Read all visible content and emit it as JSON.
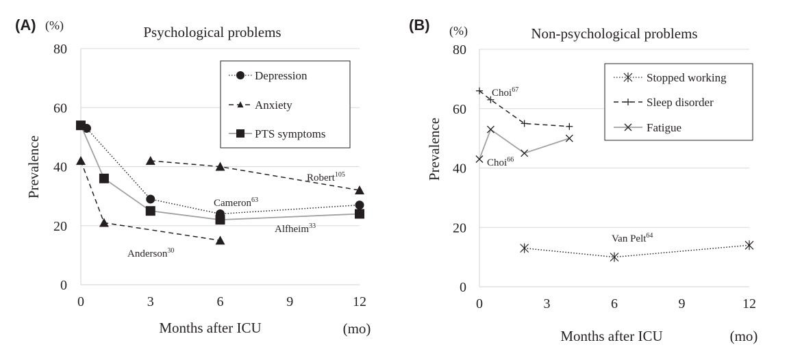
{
  "chart_data": [
    {
      "type": "line",
      "panel_label": "(A)",
      "unit_label": "(%)",
      "title": "Psychological problems",
      "xlabel": "Months after ICU",
      "x_unit": "(mo)",
      "ylabel": "Prevalence",
      "xlim": [
        0,
        12
      ],
      "ylim": [
        0,
        80
      ],
      "xticks": [
        0,
        3,
        6,
        9,
        12
      ],
      "yticks": [
        0,
        20,
        40,
        60,
        80
      ],
      "grid": "horizontal",
      "legend_position": "top-right",
      "series": [
        {
          "name": "Depression",
          "style": "dotted",
          "marker": "circle",
          "color": "#231f20",
          "points": [
            [
              0,
              54
            ],
            [
              0.25,
              53
            ],
            [
              3,
              29
            ],
            [
              6,
              24
            ],
            [
              12,
              27
            ]
          ]
        },
        {
          "name": "Anxiety",
          "style": "dashed",
          "marker": "triangle",
          "color": "#231f20",
          "points": [
            [
              0,
              42
            ],
            [
              1,
              21
            ],
            [
              6,
              15
            ]
          ]
        },
        {
          "name": "",
          "style": "dashed",
          "marker": "triangle",
          "color": "#231f20",
          "points": [
            [
              3,
              42
            ],
            [
              6,
              40
            ],
            [
              12,
              32
            ]
          ]
        },
        {
          "name": "PTS symptoms",
          "style": "solid",
          "marker": "square",
          "color": "#a0a0a0",
          "points": [
            [
              0,
              54
            ],
            [
              1,
              36
            ],
            [
              3,
              25
            ],
            [
              6,
              22
            ],
            [
              12,
              24
            ]
          ]
        }
      ],
      "annotations": [
        {
          "text": "Robert",
          "sup": "105"
        },
        {
          "text": "Cameron",
          "sup": "63"
        },
        {
          "text": "Alfheim",
          "sup": "33"
        },
        {
          "text": "Anderson",
          "sup": "30"
        }
      ]
    },
    {
      "type": "line",
      "panel_label": "(B)",
      "unit_label": "(%)",
      "title": "Non-psychological problems",
      "xlabel": "Months after ICU",
      "x_unit": "(mo)",
      "ylabel": "Prevalence",
      "xlim": [
        0,
        12
      ],
      "ylim": [
        0,
        80
      ],
      "xticks": [
        0,
        3,
        6,
        9,
        12
      ],
      "yticks": [
        0,
        20,
        40,
        60,
        80
      ],
      "grid": "horizontal",
      "legend_position": "top-right",
      "series": [
        {
          "name": "Stopped working",
          "style": "dotted",
          "marker": "asterisk",
          "color": "#231f20",
          "points": [
            [
              2,
              13
            ],
            [
              6,
              10
            ],
            [
              12,
              14
            ]
          ]
        },
        {
          "name": "Sleep disorder",
          "style": "dashed",
          "marker": "plus",
          "color": "#231f20",
          "points": [
            [
              0,
              66
            ],
            [
              0.5,
              63
            ],
            [
              2,
              55
            ],
            [
              4,
              54
            ]
          ]
        },
        {
          "name": "Fatigue",
          "style": "solid",
          "marker": "cross",
          "color": "#a0a0a0",
          "points": [
            [
              0,
              43
            ],
            [
              0.5,
              53
            ],
            [
              2,
              45
            ],
            [
              4,
              50
            ]
          ]
        }
      ],
      "annotations": [
        {
          "text": "Choi",
          "sup": "67"
        },
        {
          "text": "Choi",
          "sup": "66"
        },
        {
          "text": "Van Pelt",
          "sup": "64"
        }
      ]
    }
  ]
}
